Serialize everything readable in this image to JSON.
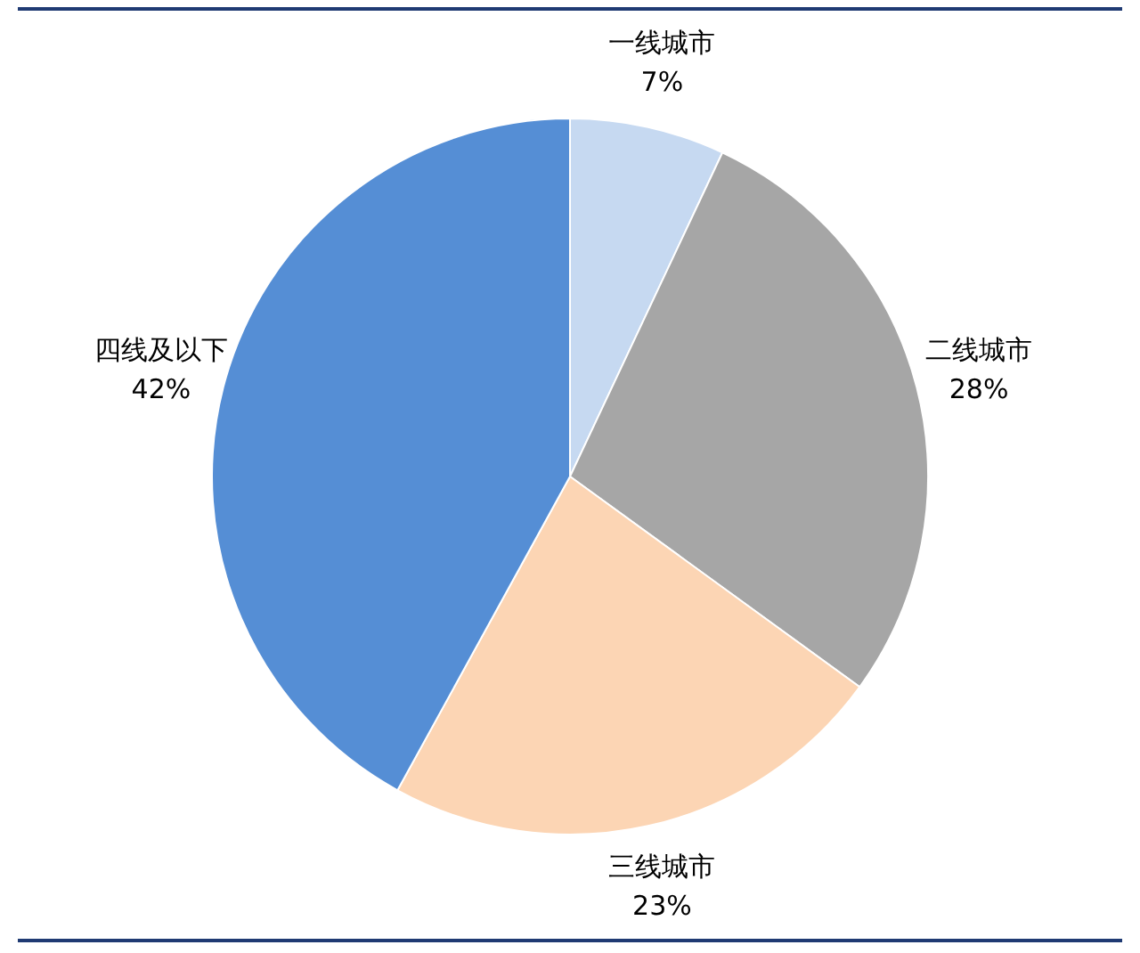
{
  "chart_data": {
    "type": "pie",
    "categories": [
      "一线城市",
      "二线城市",
      "三线城市",
      "四线及以下"
    ],
    "values": [
      7,
      28,
      23,
      42
    ],
    "value_labels": [
      "7%",
      "28%",
      "23%",
      "42%"
    ],
    "colors": [
      "#c6d9f1",
      "#a6a6a6",
      "#fcd5b4",
      "#558ed5"
    ],
    "data_labels": true,
    "legend": false
  }
}
